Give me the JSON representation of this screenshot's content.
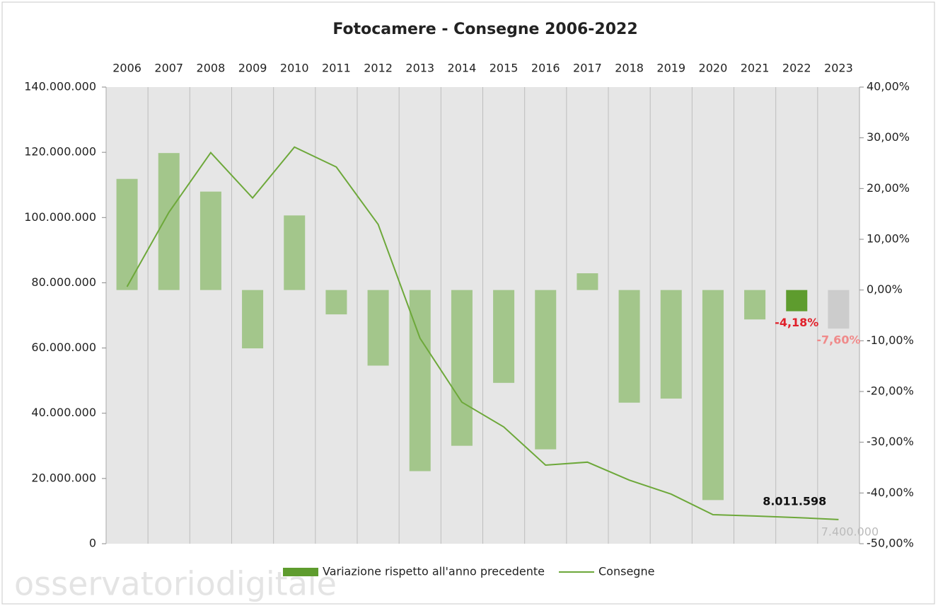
{
  "chart_data": {
    "type": "combo",
    "title": "Fotocamere - Consegne 2006-2022",
    "categories": [
      "2006",
      "2007",
      "2008",
      "2009",
      "2010",
      "2011",
      "2012",
      "2013",
      "2014",
      "2015",
      "2016",
      "2017",
      "2018",
      "2019",
      "2020",
      "2021",
      "2022",
      "2023"
    ],
    "series": [
      {
        "name": "Variazione rispetto all'anno precedente",
        "type": "bar",
        "axis": "y2",
        "color": "#a3c68b",
        "colors": [
          "#a3c68b",
          "#a3c68b",
          "#a3c68b",
          "#a3c68b",
          "#a3c68b",
          "#a3c68b",
          "#a3c68b",
          "#a3c68b",
          "#a3c68b",
          "#a3c68b",
          "#a3c68b",
          "#a3c68b",
          "#a3c68b",
          "#a3c68b",
          "#a3c68b",
          "#a3c68b",
          "#5e9c2e",
          "#cccccc"
        ],
        "values": [
          21.9,
          27.0,
          19.4,
          -11.5,
          14.7,
          -4.8,
          -14.9,
          -35.7,
          -30.7,
          -18.3,
          -31.4,
          3.3,
          -22.2,
          -21.4,
          -41.4,
          -5.8,
          -4.18,
          -7.6
        ],
        "value_labels": [
          null,
          null,
          null,
          null,
          null,
          null,
          null,
          null,
          null,
          null,
          null,
          null,
          null,
          null,
          null,
          null,
          "-4,18%",
          "-7,60%"
        ],
        "value_label_colors": [
          null,
          null,
          null,
          null,
          null,
          null,
          null,
          null,
          null,
          null,
          null,
          null,
          null,
          null,
          null,
          null,
          "#e0202a",
          "#f08a8a"
        ]
      },
      {
        "name": "Consegne",
        "type": "line",
        "axis": "y",
        "color": "#6da83a",
        "values": [
          78800000,
          101600000,
          119900000,
          106000000,
          121600000,
          115500000,
          97900000,
          63000000,
          43400000,
          35800000,
          24100000,
          25000000,
          19500000,
          15200000,
          8900000,
          8500000,
          8011598,
          7400000
        ],
        "value_labels": [
          null,
          null,
          null,
          null,
          null,
          null,
          null,
          null,
          null,
          null,
          null,
          null,
          null,
          null,
          null,
          null,
          "8.011.598",
          "7.400.000"
        ],
        "value_label_colors": [
          null,
          null,
          null,
          null,
          null,
          null,
          null,
          null,
          null,
          null,
          null,
          null,
          null,
          null,
          null,
          null,
          "#111111",
          "#bbbbbb"
        ]
      }
    ],
    "ylim": [
      0,
      140000000
    ],
    "yticks": [
      0,
      {
        "value": 20000000,
        "label": "20.000.000"
      },
      {
        "value": 40000000,
        "label": "40.000.000"
      },
      {
        "value": 60000000,
        "label": "60.000.000"
      },
      {
        "value": 80000000,
        "label": "80.000.000"
      },
      {
        "value": 100000000,
        "label": "100.000.000"
      },
      {
        "value": 120000000,
        "label": "120.000.000"
      },
      {
        "value": 140000000,
        "label": "140.000.000"
      }
    ],
    "y2lim": [
      -50,
      40
    ],
    "y2ticks": [
      {
        "value": -50,
        "label": "-50,00%"
      },
      {
        "value": -40,
        "label": "-40,00%"
      },
      {
        "value": -30,
        "label": "-30,00%"
      },
      {
        "value": -20,
        "label": "-20,00%"
      },
      {
        "value": -10,
        "label": "-10,00%"
      },
      {
        "value": 0,
        "label": "0,00%"
      },
      {
        "value": 10,
        "label": "10,00%"
      },
      {
        "value": 20,
        "label": "20,00%"
      },
      {
        "value": 30,
        "label": "30,00%"
      },
      {
        "value": 40,
        "label": "40,00%"
      }
    ],
    "legend": "bottom",
    "watermark": "osservatoriodigitale"
  }
}
